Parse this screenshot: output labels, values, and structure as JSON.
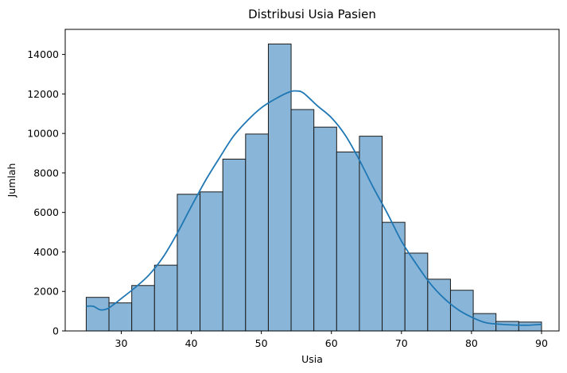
{
  "chart_data": {
    "type": "bar",
    "title": "Distribusi Usia Pasien",
    "xlabel": "Usia",
    "ylabel": "Jumlah",
    "xlim": [
      22,
      92.5
    ],
    "ylim": [
      0,
      15270
    ],
    "xticks": [
      30,
      40,
      50,
      60,
      70,
      80,
      90
    ],
    "yticks": [
      0,
      2000,
      4000,
      6000,
      8000,
      10000,
      12000,
      14000
    ],
    "bin_edges": [
      25,
      28.25,
      31.5,
      34.75,
      38,
      41.25,
      44.5,
      47.75,
      51,
      54.25,
      57.5,
      60.75,
      64,
      67.25,
      70.5,
      73.75,
      77,
      80.25,
      83.5,
      86.75,
      90
    ],
    "counts": [
      1700,
      1420,
      2300,
      3330,
      6920,
      7040,
      8700,
      9970,
      14530,
      11210,
      10320,
      9060,
      9860,
      5500,
      3940,
      2620,
      2060,
      880,
      480,
      450
    ],
    "kde": {
      "x": [
        25,
        26,
        27,
        28,
        29,
        30,
        32,
        34,
        36,
        38,
        40,
        42,
        44,
        46,
        48,
        50,
        52,
        54,
        55,
        56,
        58,
        60,
        62,
        64,
        66,
        68,
        70,
        72,
        74,
        76,
        78,
        80,
        82,
        84,
        86,
        88,
        90
      ],
      "y": [
        1250,
        1250,
        1070,
        1120,
        1360,
        1640,
        2200,
        2850,
        3750,
        4950,
        6300,
        7600,
        8750,
        9850,
        10650,
        11300,
        11750,
        12100,
        12150,
        12050,
        11400,
        10800,
        9900,
        8650,
        7250,
        5950,
        4550,
        3450,
        2450,
        1680,
        1100,
        700,
        420,
        340,
        300,
        290,
        330
      ]
    },
    "colors": {
      "bar_fill": "#89b6d8",
      "bar_edge": "#1a1a1a",
      "kde_line": "#1f77b4"
    },
    "grid": false,
    "legend": "none"
  }
}
